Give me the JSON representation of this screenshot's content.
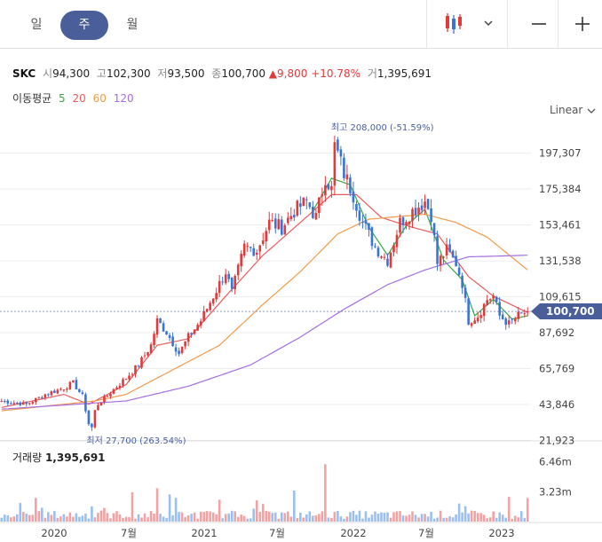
{
  "tabs": [
    {
      "label": "일",
      "active": false
    },
    {
      "label": "주",
      "active": true
    },
    {
      "label": "월",
      "active": false
    }
  ],
  "toolbar": {
    "chart_type_icon": "candlestick-icon",
    "dropdown_icon": "chevron-down-icon",
    "zoom_out_icon": "minus-icon",
    "zoom_in_icon": "plus-icon"
  },
  "quote": {
    "symbol": "SKC",
    "open_label": "시",
    "open": "94,300",
    "high_label": "고",
    "high": "102,300",
    "low_label": "저",
    "low": "93,500",
    "close_label": "종",
    "close": "100,700",
    "change": "▲9,800",
    "change_pct": "+10.78%",
    "volume_label": "거",
    "volume": "1,395,691"
  },
  "ma_legend": {
    "label": "이동평균",
    "periods": [
      {
        "value": "5",
        "color": "#3aa845"
      },
      {
        "value": "20",
        "color": "#e85d5d"
      },
      {
        "value": "60",
        "color": "#f29a4a"
      },
      {
        "value": "120",
        "color": "#a56ee0"
      }
    ]
  },
  "scale": {
    "label": "Linear"
  },
  "chart_data": {
    "type": "line",
    "x_ticks": [
      "2020",
      "7월",
      "2021",
      "7월",
      "2022",
      "7월",
      "2023"
    ],
    "y_ticks": [
      "197,307",
      "175,384",
      "153,461",
      "131,538",
      "109,615",
      "87,692",
      "65,769",
      "43,846",
      "21,923"
    ],
    "y_tick_values": [
      197307,
      175384,
      153461,
      131538,
      109615,
      87692,
      65769,
      43846,
      21923
    ],
    "ylim": [
      20000,
      215000
    ],
    "current_price_label": "100,700",
    "current_price": 100700,
    "high_annotation": "최고 208,000 (-51.59%)",
    "low_annotation": "최저 27,700 (263.54%)",
    "up_color": "#e03a3a",
    "down_color": "#3a74d8",
    "price_anchors": [
      [
        0,
        46000
      ],
      [
        8,
        44000
      ],
      [
        14,
        50000
      ],
      [
        20,
        54000
      ],
      [
        23,
        57000
      ],
      [
        26,
        49000
      ],
      [
        28,
        32000
      ],
      [
        31,
        44000
      ],
      [
        36,
        53000
      ],
      [
        40,
        60000
      ],
      [
        44,
        68000
      ],
      [
        48,
        80000
      ],
      [
        50,
        95000
      ],
      [
        53,
        88000
      ],
      [
        57,
        75000
      ],
      [
        60,
        85000
      ],
      [
        64,
        95000
      ],
      [
        68,
        110000
      ],
      [
        72,
        125000
      ],
      [
        74,
        112000
      ],
      [
        78,
        140000
      ],
      [
        82,
        138000
      ],
      [
        86,
        155000
      ],
      [
        90,
        152000
      ],
      [
        94,
        162000
      ],
      [
        98,
        168000
      ],
      [
        101,
        158000
      ],
      [
        104,
        183000
      ],
      [
        106,
        175000
      ],
      [
        108,
        197000
      ],
      [
        110,
        185000
      ],
      [
        113,
        172000
      ],
      [
        116,
        155000
      ],
      [
        120,
        140000
      ],
      [
        124,
        132000
      ],
      [
        128,
        155000
      ],
      [
        132,
        162000
      ],
      [
        136,
        168000
      ],
      [
        138,
        160000
      ],
      [
        140,
        130000
      ],
      [
        143,
        138000
      ],
      [
        146,
        130000
      ],
      [
        148,
        118000
      ],
      [
        150,
        95000
      ],
      [
        153,
        98000
      ],
      [
        156,
        108000
      ],
      [
        158,
        110000
      ],
      [
        160,
        98000
      ],
      [
        163,
        93000
      ],
      [
        166,
        98000
      ],
      [
        169,
        100700
      ]
    ],
    "ma_anchors": {
      "5": [
        [
          100,
          162000
        ],
        [
          106,
          182000
        ],
        [
          112,
          178000
        ],
        [
          118,
          152000
        ],
        [
          124,
          135000
        ],
        [
          130,
          153000
        ],
        [
          136,
          163000
        ],
        [
          142,
          132000
        ],
        [
          148,
          120000
        ],
        [
          152,
          98000
        ],
        [
          158,
          108000
        ],
        [
          164,
          96000
        ],
        [
          169,
          98000
        ]
      ],
      "20": [
        [
          0,
          42000
        ],
        [
          20,
          50000
        ],
        [
          28,
          44000
        ],
        [
          40,
          56000
        ],
        [
          50,
          80000
        ],
        [
          60,
          84000
        ],
        [
          72,
          110000
        ],
        [
          84,
          135000
        ],
        [
          96,
          155000
        ],
        [
          106,
          172000
        ],
        [
          114,
          172000
        ],
        [
          122,
          158000
        ],
        [
          132,
          152000
        ],
        [
          140,
          148000
        ],
        [
          150,
          122000
        ],
        [
          158,
          110000
        ],
        [
          169,
          100000
        ]
      ],
      "60": [
        [
          0,
          40000
        ],
        [
          30,
          46000
        ],
        [
          40,
          50000
        ],
        [
          56,
          66000
        ],
        [
          70,
          80000
        ],
        [
          84,
          105000
        ],
        [
          96,
          125000
        ],
        [
          108,
          148000
        ],
        [
          118,
          157000
        ],
        [
          136,
          160000
        ],
        [
          146,
          155000
        ],
        [
          156,
          146000
        ],
        [
          169,
          126000
        ]
      ],
      "120": [
        [
          0,
          41000
        ],
        [
          40,
          46000
        ],
        [
          60,
          55000
        ],
        [
          80,
          68000
        ],
        [
          96,
          85000
        ],
        [
          110,
          102000
        ],
        [
          124,
          117000
        ],
        [
          136,
          126000
        ],
        [
          150,
          134000
        ],
        [
          169,
          135000
        ]
      ]
    },
    "volume_axis": [
      "6.46m",
      "3.23m"
    ],
    "volume_max": 7000000,
    "volume_title": "거래량",
    "volume_value": "1,395,691"
  }
}
